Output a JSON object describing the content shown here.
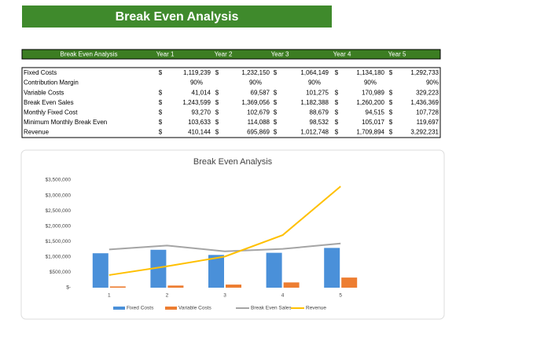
{
  "header": {
    "title": "Break Even Analysis"
  },
  "table": {
    "columns": [
      "Break Even Analysis",
      "Year 1",
      "Year 2",
      "Year 3",
      "Year 4",
      "Year 5"
    ],
    "rows": [
      {
        "label": "Fixed Costs",
        "cells": [
          [
            "$",
            "1,119,239"
          ],
          [
            "$",
            "1,232,150"
          ],
          [
            "$",
            "1,064,149"
          ],
          [
            "$",
            "1,134,180"
          ],
          [
            "$",
            "1,292,733"
          ]
        ]
      },
      {
        "label": "Contribution Margin",
        "cells": [
          [
            "90%"
          ],
          [
            "90%"
          ],
          [
            "90%"
          ],
          [
            "90%"
          ],
          [
            "90%"
          ]
        ]
      },
      {
        "label": "Variable Costs",
        "cells": [
          [
            "$",
            "41,014"
          ],
          [
            "$",
            "69,587"
          ],
          [
            "$",
            "101,275"
          ],
          [
            "$",
            "170,989"
          ],
          [
            "$",
            "329,223"
          ]
        ]
      },
      {
        "label": "Break Even Sales",
        "cells": [
          [
            "$",
            "1,243,599"
          ],
          [
            "$",
            "1,369,056"
          ],
          [
            "$",
            "1,182,388"
          ],
          [
            "$",
            "1,260,200"
          ],
          [
            "$",
            "1,436,369"
          ]
        ]
      },
      {
        "label": "Monthly Fixed Cost",
        "cells": [
          [
            "$",
            "93,270"
          ],
          [
            "$",
            "102,679"
          ],
          [
            "$",
            "88,679"
          ],
          [
            "$",
            "94,515"
          ],
          [
            "$",
            "107,728"
          ]
        ]
      },
      {
        "label": "Minimum Monthly Break Even",
        "cells": [
          [
            "$",
            "103,633"
          ],
          [
            "$",
            "114,088"
          ],
          [
            "$",
            "98,532"
          ],
          [
            "$",
            "105,017"
          ],
          [
            "$",
            "119,697"
          ]
        ]
      },
      {
        "label": "Revenue",
        "cells": [
          [
            "$",
            "410,144"
          ],
          [
            "$",
            "695,869"
          ],
          [
            "$",
            "1,012,748"
          ],
          [
            "$",
            "1,709,894"
          ],
          [
            "$",
            "3,292,231"
          ]
        ]
      }
    ]
  },
  "chart_data": {
    "type": "bar",
    "title": "Break Even Analysis",
    "categories": [
      "1",
      "2",
      "3",
      "4",
      "5"
    ],
    "ylim": [
      0,
      3500000
    ],
    "yticks": [
      {
        "value": 0,
        "label": "$-"
      },
      {
        "value": 500000,
        "label": "$500,000"
      },
      {
        "value": 1000000,
        "label": "$1,000,000"
      },
      {
        "value": 1500000,
        "label": "$1,500,000"
      },
      {
        "value": 2000000,
        "label": "$2,000,000"
      },
      {
        "value": 2500000,
        "label": "$2,500,000"
      },
      {
        "value": 3000000,
        "label": "$3,000,000"
      },
      {
        "value": 3500000,
        "label": "$3,500,000"
      }
    ],
    "series": [
      {
        "name": "Fixed Costs",
        "type": "bar",
        "color": "#4a90d9",
        "values": [
          1119239,
          1232150,
          1064149,
          1134180,
          1292733
        ]
      },
      {
        "name": "Variable Costs",
        "type": "bar",
        "color": "#ed7d31",
        "values": [
          41014,
          69587,
          101275,
          170989,
          329223
        ]
      },
      {
        "name": "Break Even Sales",
        "type": "line",
        "color": "#a5a5a5",
        "values": [
          1243599,
          1369056,
          1182388,
          1260200,
          1436369
        ]
      },
      {
        "name": "Revenue",
        "type": "line",
        "color": "#ffc000",
        "values": [
          410144,
          695869,
          1012748,
          1709894,
          3292231
        ]
      }
    ]
  }
}
